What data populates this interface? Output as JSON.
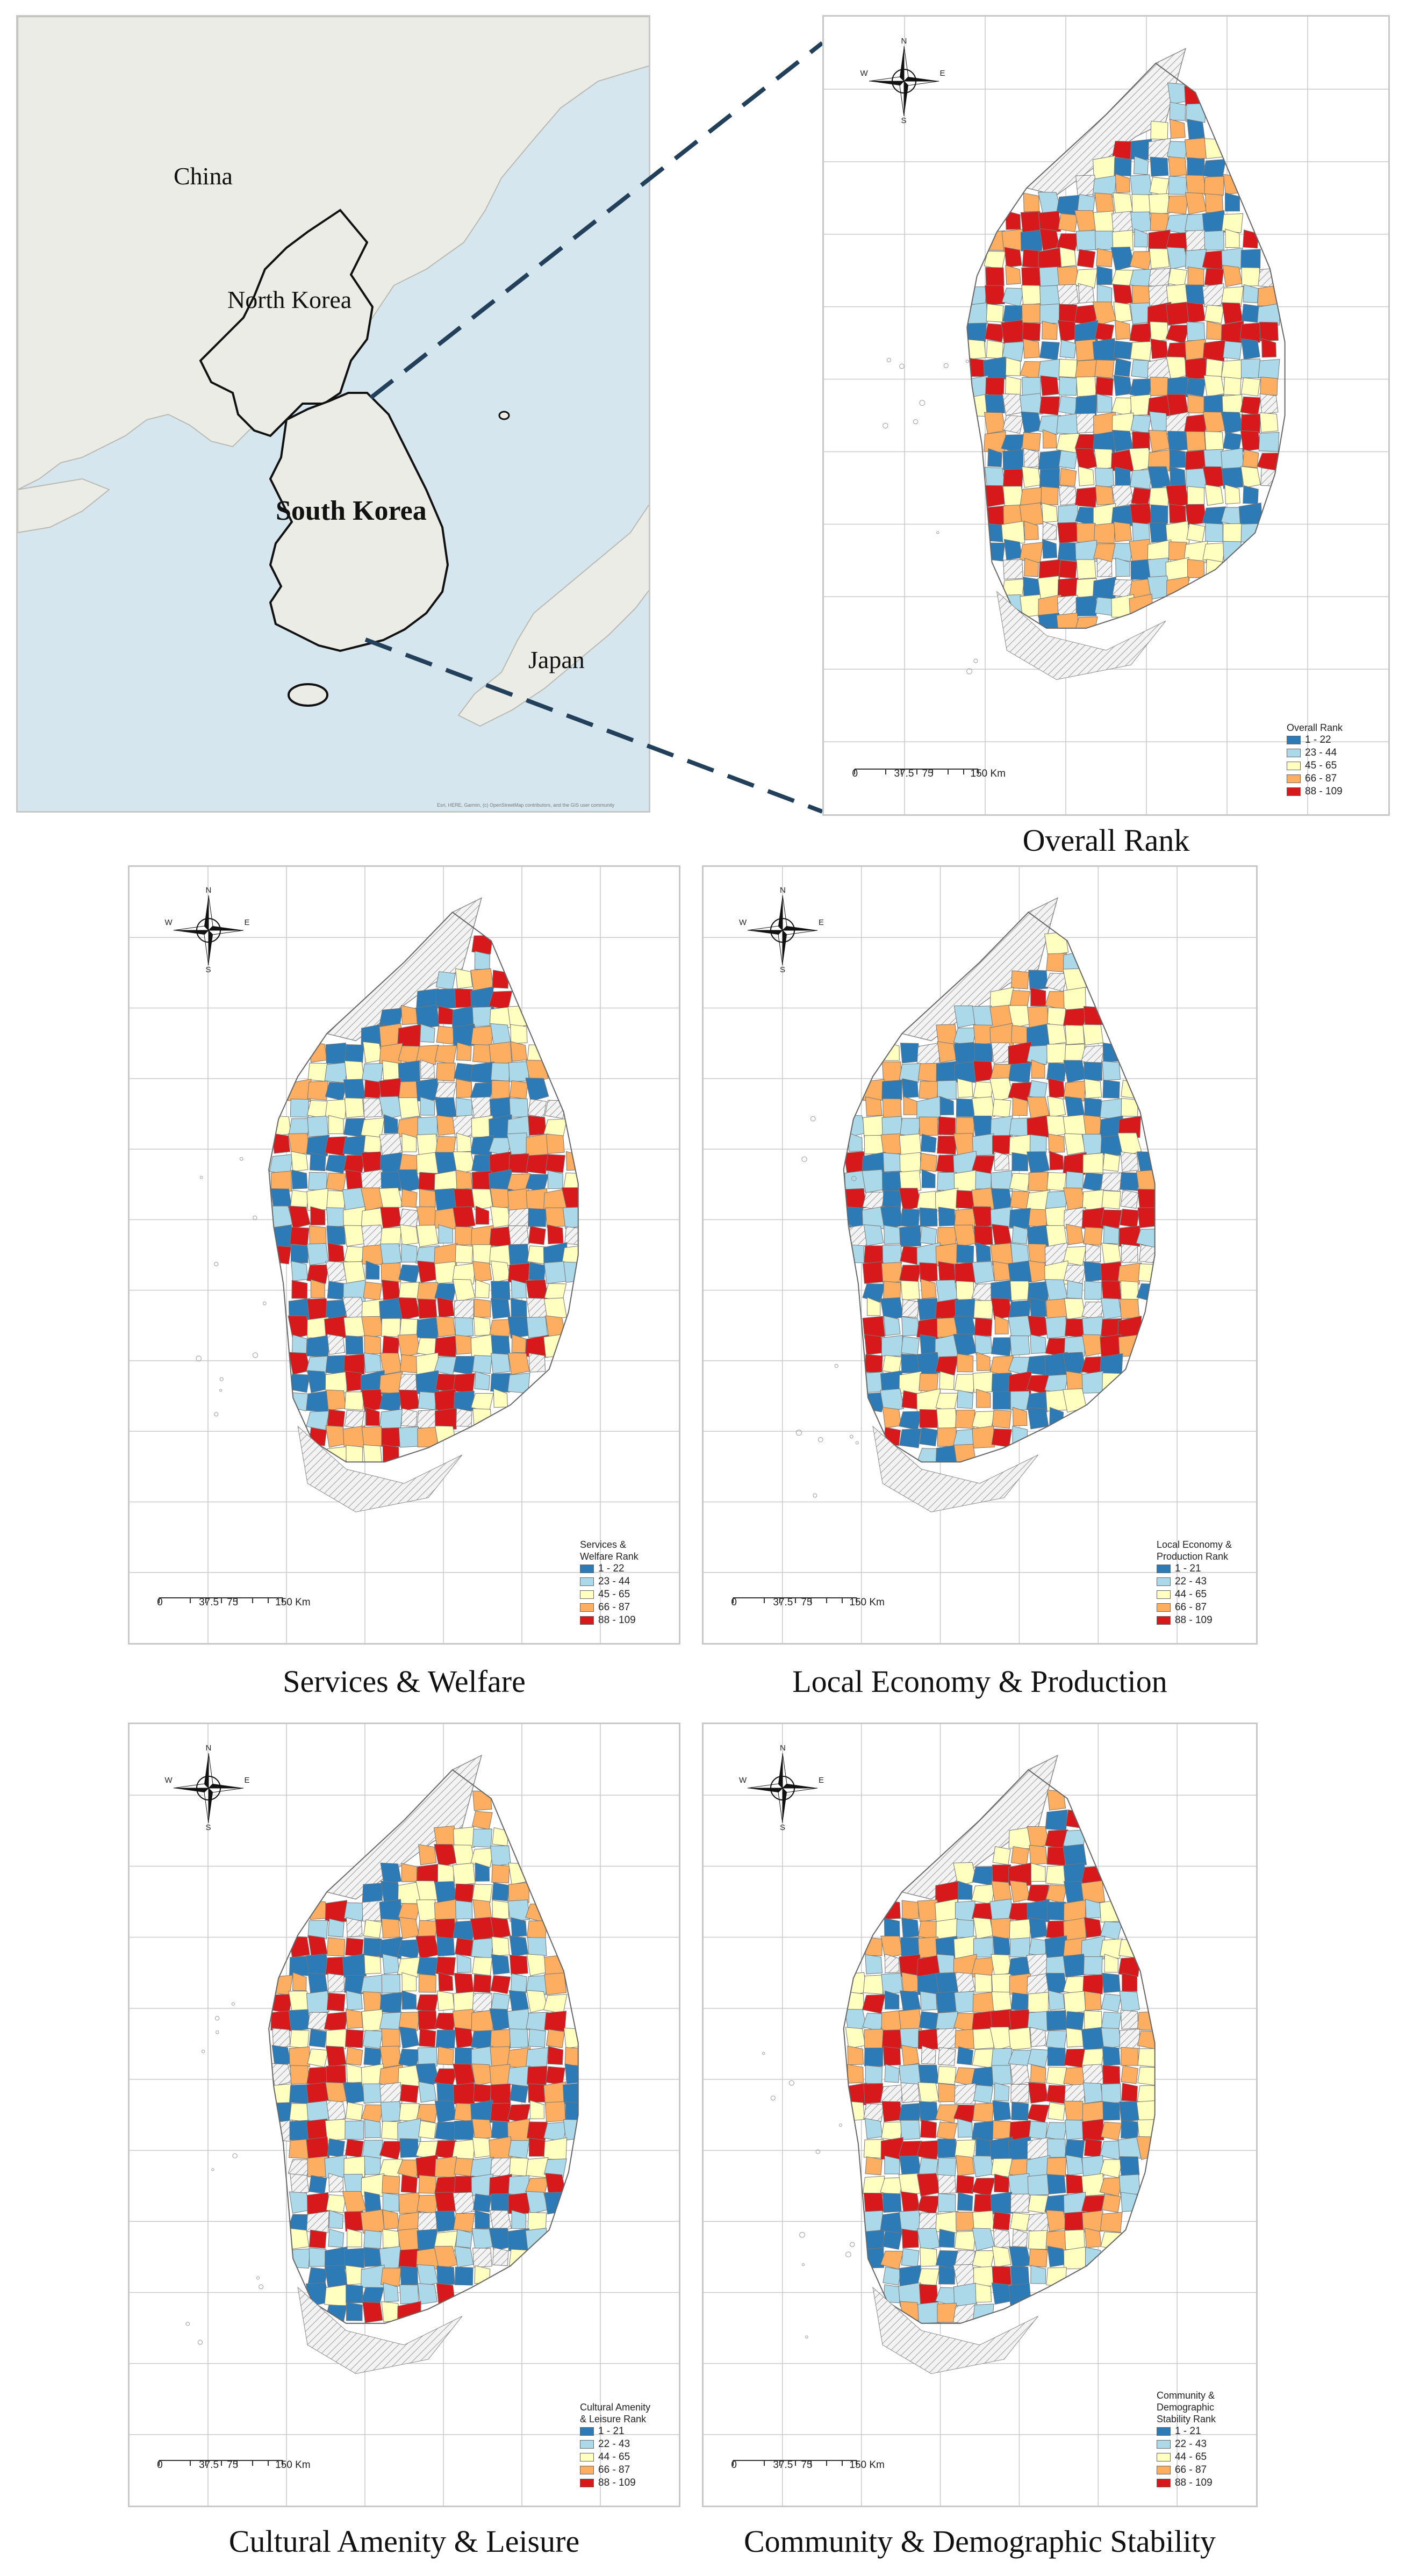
{
  "locator": {
    "labels": {
      "china": "China",
      "north_korea": "North Korea",
      "south_korea": "South Korea",
      "japan": "Japan"
    },
    "attribution": "Esri, HERE, Garmin, (c) OpenStreetMap contributors, and the GIS user community"
  },
  "compass": {
    "n": "N",
    "s": "S",
    "e": "E",
    "w": "W"
  },
  "scale": {
    "t0": "0",
    "t1": "37.5",
    "t2": "75",
    "t3": "150 Km"
  },
  "colors": {
    "c1": "#2c7bb6",
    "c2": "#abd9e9",
    "c3": "#ffffbf",
    "c4": "#fdae61",
    "c5": "#d7191c",
    "hatch": "#9a9a9a",
    "ocean": "#cfe3ee",
    "land": "#eeeeea"
  },
  "maps": [
    {
      "key": "overall",
      "caption": "Overall  Rank",
      "legend_title": "Overall Rank",
      "legend": [
        "1 - 22",
        "23 - 44",
        "45 - 65",
        "66 - 87",
        "88 - 109"
      ],
      "seed": 11
    },
    {
      "key": "services",
      "caption": "Services & Welfare",
      "legend_title": "Services &\nWelfare Rank",
      "legend": [
        "1 - 22",
        "23 - 44",
        "45 - 65",
        "66 - 87",
        "88 - 109"
      ],
      "seed": 29
    },
    {
      "key": "economy",
      "caption": "Local Economy & Production",
      "legend_title": "Local Economy &\nProduction Rank",
      "legend": [
        "1 - 21",
        "22 - 43",
        "44 - 65",
        "66 - 87",
        "88 - 109"
      ],
      "seed": 47
    },
    {
      "key": "cultural",
      "caption": "Cultural Amenity & Leisure",
      "legend_title": "Cultural Amenity\n& Leisure Rank",
      "legend": [
        "1 - 21",
        "22 - 43",
        "44 - 65",
        "66 - 87",
        "88 - 109"
      ],
      "seed": 71
    },
    {
      "key": "community",
      "caption": "Community & Demographic Stability",
      "legend_title": "Community &\nDemographic\nStability Rank",
      "legend": [
        "1 - 21",
        "22 - 43",
        "44 - 65",
        "66 - 87",
        "88 - 109"
      ],
      "seed": 93
    }
  ]
}
